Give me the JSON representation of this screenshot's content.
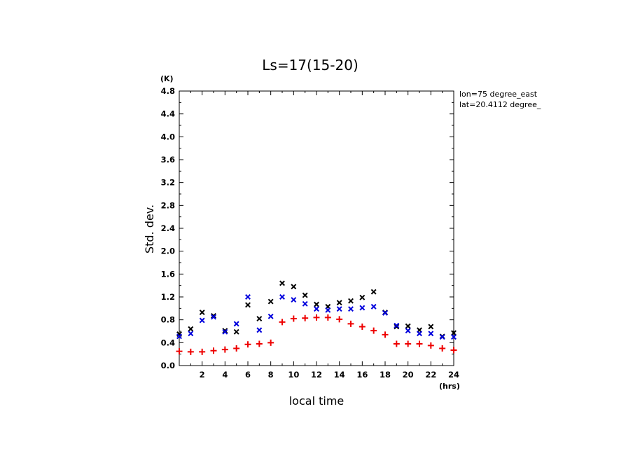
{
  "chart_data": {
    "type": "scatter",
    "title": "Ls=17(15-20)",
    "xlabel": "local time",
    "ylabel": "Std. dev.",
    "x_unit": "(hrs)",
    "y_unit": "(K)",
    "xlim": [
      0,
      24
    ],
    "ylim": [
      0,
      4.8
    ],
    "x_ticks": [
      2,
      4,
      6,
      8,
      10,
      12,
      14,
      16,
      18,
      20,
      22,
      24
    ],
    "y_ticks": [
      0.0,
      0.4,
      0.8,
      1.2,
      1.6,
      2.0,
      2.4,
      2.8,
      3.2,
      3.6,
      4.0,
      4.4,
      4.8
    ],
    "y_tick_labels": [
      "0.0",
      "0.4",
      "0.8",
      "1.2",
      "1.6",
      "2.0",
      "2.4",
      "2.8",
      "3.2",
      "3.6",
      "4.0",
      "4.4",
      "4.8"
    ],
    "annotations": [
      "lon=75 degree_east",
      "lat=20.4112 degree_"
    ],
    "grid": false,
    "x": [
      0,
      1,
      2,
      3,
      4,
      5,
      6,
      7,
      8,
      9,
      10,
      11,
      12,
      13,
      14,
      15,
      16,
      17,
      18,
      19,
      20,
      21,
      22,
      23,
      24
    ],
    "series": [
      {
        "marker": "x",
        "color": "#000000",
        "values": [
          0.55,
          0.64,
          0.93,
          0.87,
          0.61,
          0.59,
          1.06,
          0.82,
          1.12,
          1.44,
          1.38,
          1.23,
          1.07,
          1.03,
          1.1,
          1.13,
          1.19,
          1.29,
          0.93,
          0.68,
          0.69,
          0.62,
          0.68,
          0.51,
          0.57
        ]
      },
      {
        "marker": "x",
        "color": "#0000dd",
        "values": [
          0.51,
          0.56,
          0.79,
          0.85,
          0.59,
          0.73,
          1.2,
          0.62,
          0.86,
          1.2,
          1.15,
          1.08,
          0.99,
          0.97,
          0.99,
          0.99,
          1.01,
          1.03,
          0.92,
          0.7,
          0.61,
          0.56,
          0.56,
          0.5,
          0.5
        ]
      },
      {
        "marker": "+",
        "color": "#ee0000",
        "values": [
          0.25,
          0.24,
          0.24,
          0.26,
          0.28,
          0.3,
          0.37,
          0.38,
          0.4,
          0.76,
          0.82,
          0.83,
          0.84,
          0.84,
          0.81,
          0.73,
          0.68,
          0.61,
          0.54,
          0.38,
          0.38,
          0.38,
          0.35,
          0.3,
          0.27
        ]
      }
    ]
  }
}
